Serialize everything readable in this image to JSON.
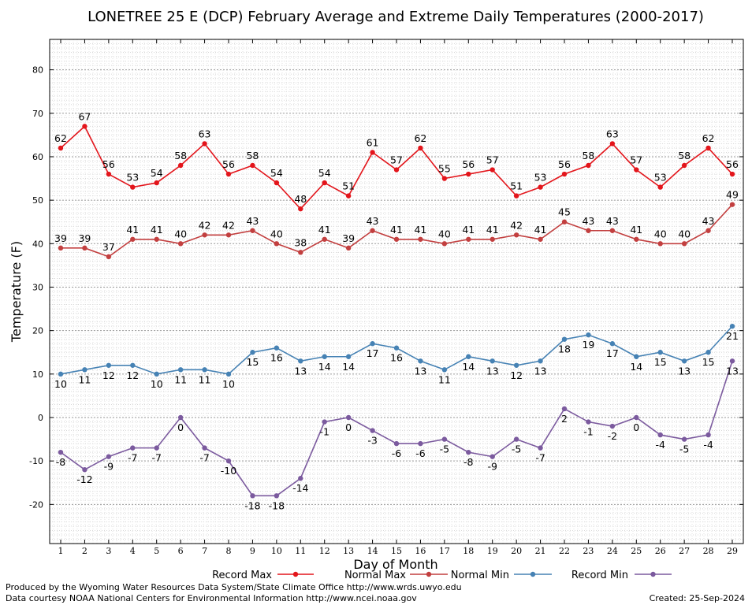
{
  "chart_data": {
    "type": "line",
    "title": "LONETREE 25 E (DCP) February Average and Extreme Daily Temperatures (2000-2017)",
    "xlabel": "Day of Month",
    "ylabel": "Temperature (F)",
    "ylim": [
      -29,
      87
    ],
    "yticks": [
      -20,
      -10,
      0,
      10,
      20,
      30,
      40,
      50,
      60,
      70,
      80
    ],
    "x": [
      1,
      2,
      3,
      4,
      5,
      6,
      7,
      8,
      9,
      10,
      11,
      12,
      13,
      14,
      15,
      16,
      17,
      18,
      19,
      20,
      21,
      22,
      23,
      24,
      25,
      26,
      27,
      28,
      29
    ],
    "grid": true,
    "legend_position": "bottom",
    "series": [
      {
        "name": "Record Max",
        "color": "#e3151b",
        "label_pos": "above",
        "values": [
          62,
          67,
          56,
          53,
          54,
          58,
          63,
          56,
          58,
          54,
          48,
          54,
          51,
          61,
          57,
          62,
          55,
          56,
          57,
          51,
          53,
          56,
          58,
          63,
          57,
          53,
          58,
          62,
          56
        ]
      },
      {
        "name": "Normal Max",
        "color": "#c23f3f",
        "label_pos": "above",
        "values": [
          39,
          39,
          37,
          41,
          41,
          40,
          42,
          42,
          43,
          40,
          38,
          41,
          39,
          43,
          41,
          41,
          40,
          41,
          41,
          42,
          41,
          45,
          43,
          43,
          41,
          40,
          40,
          43,
          49
        ]
      },
      {
        "name": "Normal Min",
        "color": "#4682b4",
        "label_pos": "below",
        "values": [
          10,
          11,
          12,
          12,
          10,
          11,
          11,
          10,
          15,
          16,
          13,
          14,
          14,
          17,
          16,
          13,
          11,
          14,
          13,
          12,
          13,
          18,
          19,
          17,
          14,
          15,
          13,
          15,
          21
        ]
      },
      {
        "name": "Record Min",
        "color": "#7b5a9e",
        "label_pos": "below",
        "values": [
          -8,
          -12,
          -9,
          -7,
          -7,
          0,
          -7,
          -10,
          -18,
          -18,
          -14,
          -1,
          0,
          -3,
          -6,
          -6,
          -5,
          -8,
          -9,
          -5,
          -7,
          2,
          -1,
          -2,
          0,
          -4,
          -5,
          -4,
          13
        ]
      }
    ]
  },
  "footer": {
    "produced_by": "Produced by the Wyoming Water Resources Data System/State Climate Office http://www.wrds.uwyo.edu",
    "courtesy": "Data courtesy NOAA National Centers for Environmental Information http://www.ncei.noaa.gov",
    "created": "Created:  25-Sep-2024"
  }
}
